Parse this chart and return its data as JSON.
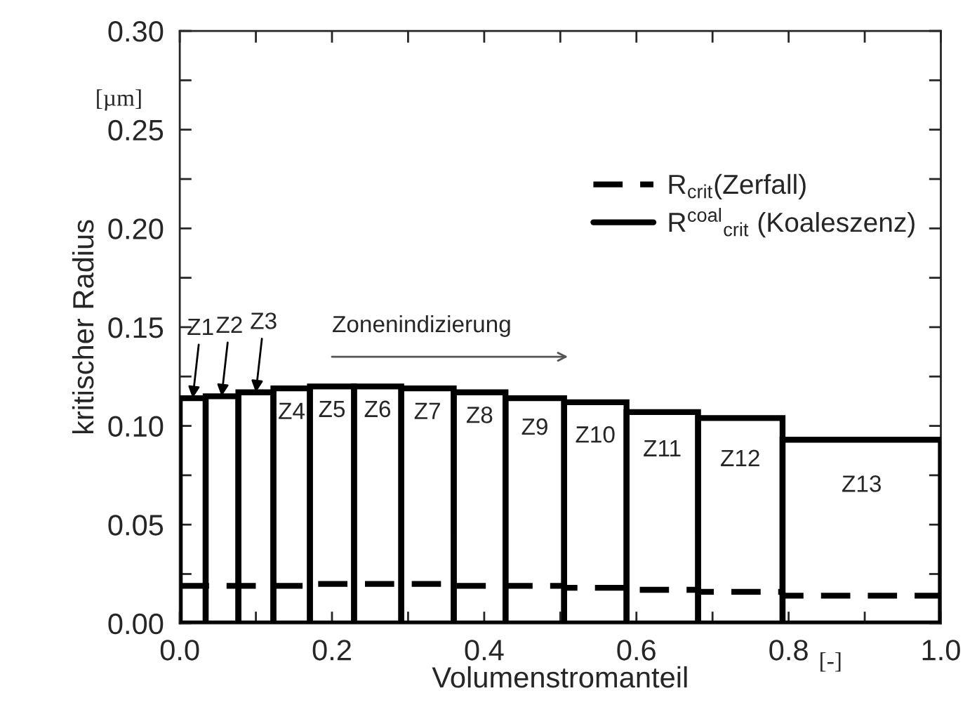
{
  "chart_data": {
    "type": "histogram",
    "xlabel": "Volumenstromanteil",
    "ylabel": "kritischer Radius",
    "bins": [
      0,
      0.034,
      0.077,
      0.123,
      0.171,
      0.229,
      0.291,
      0.36,
      0.428,
      0.505,
      0.587,
      0.681,
      0.792,
      1.0
    ],
    "series": [
      {
        "type": "step",
        "name": "R$_{crit}$(Zerfall)",
        "color": "#000000",
        "line_style": "dashed",
        "x": [
          0,
          0.034,
          0.077,
          0.123,
          0.171,
          0.229,
          0.291,
          0.36,
          0.428,
          0.505,
          0.587,
          0.681,
          0.792,
          1.0
        ],
        "values": [
          0.019,
          0.019,
          0.019,
          0.019,
          0.02,
          0.02,
          0.02,
          0.019,
          0.019,
          0.018,
          0.017,
          0.016,
          0.014,
          0.014
        ]
      },
      {
        "type": "histogram",
        "name": "R$^{coal}$$_{crit}$ (Koaleszenz)",
        "color": "#000000",
        "line_style": "solid",
        "values": [
          0.114,
          0.115,
          0.117,
          0.119,
          0.12,
          0.12,
          0.119,
          0.117,
          0.114,
          0.112,
          0.107,
          0.104,
          0.093
        ]
      }
    ],
    "annotations": [
      {
        "text": "Z1",
        "x": 0.017,
        "y": 0.114
      },
      {
        "text": "Z2",
        "x": 0.055,
        "y": 0.115
      },
      {
        "text": "Z3",
        "x": 0.1,
        "y": 0.117
      },
      "Z4",
      "Z5",
      "Z6",
      "Z7",
      "Z8",
      "Z9",
      "Z10",
      "Z11",
      "Z12",
      "Z13",
      "Zonenindizierung",
      "[µm]",
      "[-]"
    ],
    "xlim": [
      0,
      1.0
    ],
    "ylim": [
      0,
      0.3
    ],
    "xticks": [
      "0.0",
      {
        "value": 0.1,
        "label": null
      },
      {
        "value": 0.2,
        "label": "0.2"
      },
      {
        "value": 0.3,
        "label": null
      },
      {
        "value": 0.4,
        "label": "0.4"
      },
      {
        "value": 0.5,
        "label": null
      },
      {
        "value": 0.6,
        "label": "0.6"
      },
      {
        "value": 0.7,
        "label": null
      },
      {
        "value": 0.8,
        "label": "0.8"
      },
      {
        "value": 0.9,
        "label": null
      },
      {
        "value": 1.0,
        "label": "1.0"
      }
    ],
    "yticks": [
      {
        "value": 0,
        "label": "0.00"
      },
      {
        "value": 0.025,
        "label": null
      },
      {
        "value": 0.05,
        "label": "0.05"
      },
      {
        "value": 0.075,
        "label": null
      },
      {
        "value": 0.1,
        "label": "0.10"
      },
      {
        "value": 0.125,
        "label": null
      },
      {
        "value": 0.15,
        "label": "0.15"
      },
      {
        "value": 0.175,
        "label": null
      },
      {
        "value": 0.2,
        "label": "0.20"
      },
      {
        "value": 0.225,
        "label": null
      },
      {
        "value": 0.25,
        "label": "0.25"
      },
      {
        "value": 0.275,
        "label": null
      },
      {
        "value": 0.3,
        "label": "0.30"
      }
    ],
    "legend": "top right",
    "grid": false
  }
}
